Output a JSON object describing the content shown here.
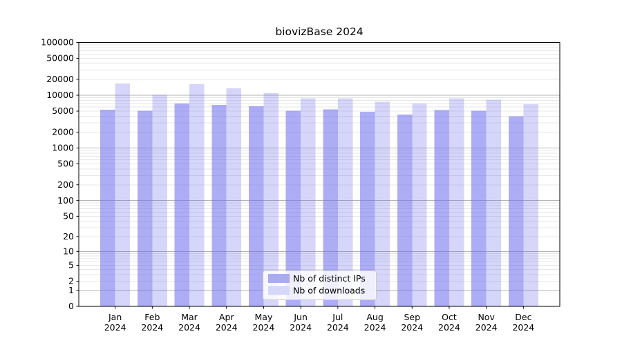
{
  "chart_data": {
    "type": "bar",
    "title": "biovizBase 2024",
    "categories": [
      "Jan",
      "Feb",
      "Mar",
      "Apr",
      "May",
      "Jun",
      "Jul",
      "Aug",
      "Sep",
      "Oct",
      "Nov",
      "Dec"
    ],
    "category_year": "2024",
    "series": [
      {
        "name": "Nb of distinct IPs",
        "color": "rgba(105,105,237,0.55)",
        "swatch_color": "#aaaaf2",
        "values": [
          5300,
          5050,
          7000,
          6600,
          6200,
          5050,
          5400,
          4850,
          4300,
          5250,
          5100,
          4000
        ]
      },
      {
        "name": "Nb of downloads",
        "color": "rgba(105,105,237,0.27)",
        "swatch_color": "#d7d7fa",
        "values": [
          16800,
          10100,
          16300,
          13600,
          11000,
          8700,
          8700,
          7500,
          7000,
          8700,
          8200,
          6800
        ]
      }
    ],
    "yscale": "log1p",
    "ylim": [
      0,
      100000
    ],
    "ytick_labels": [
      100000,
      50000,
      20000,
      10000,
      5000,
      2000,
      1000,
      500,
      200,
      100,
      50,
      20,
      10,
      5,
      2,
      1,
      0
    ],
    "grid": true,
    "legend_position": "lower center",
    "colors": {
      "axis": "#000000",
      "text": "#000000",
      "major_grid": "#b3b3b3",
      "minor_grid": "#e7e7e7",
      "legend_bg": "rgba(255,255,255,0.8)",
      "legend_border": "#cccccc",
      "background": "#ffffff"
    }
  }
}
